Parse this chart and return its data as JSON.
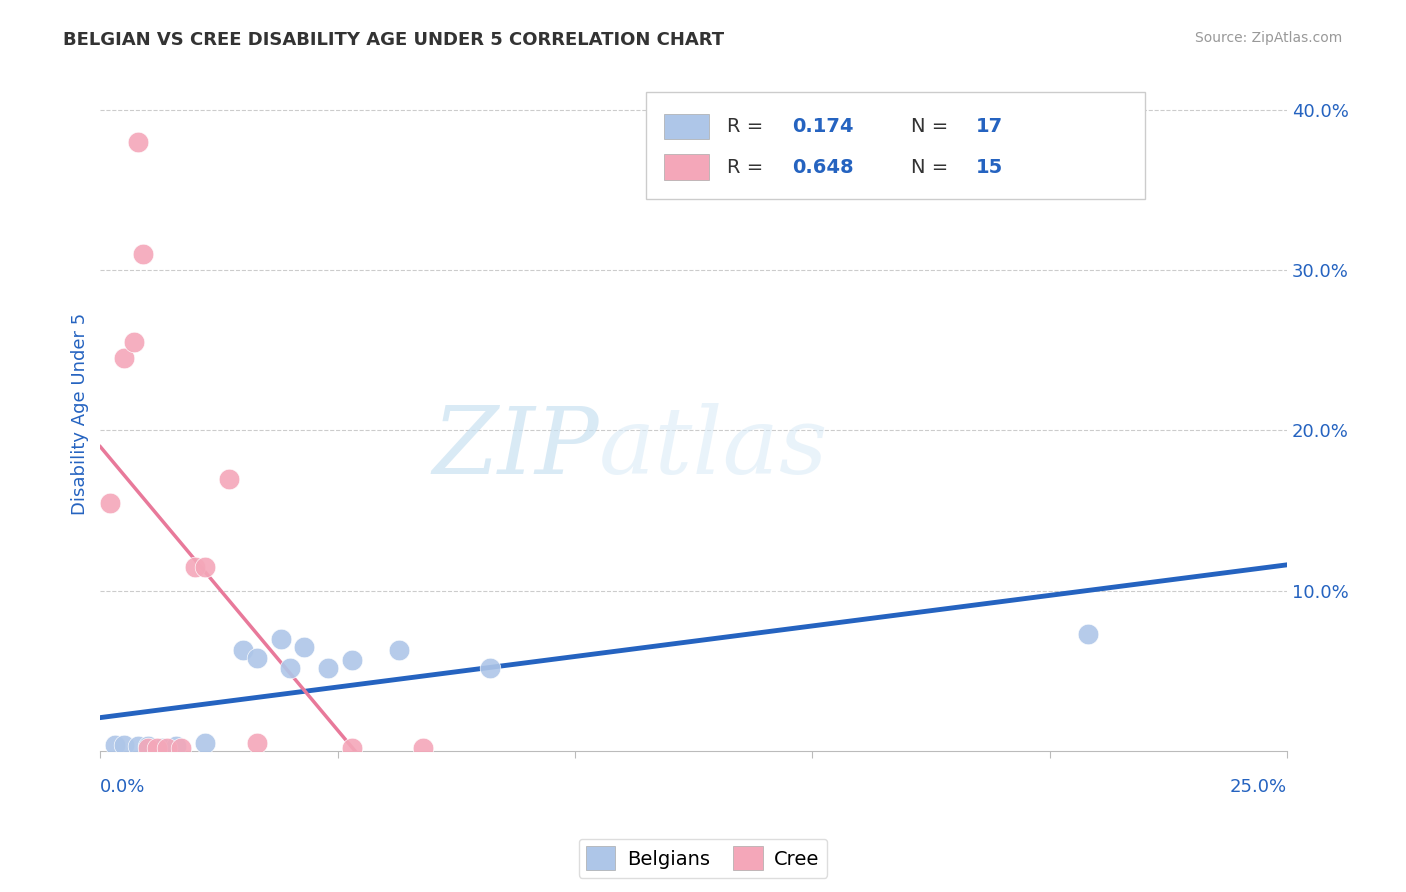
{
  "title": "BELGIAN VS CREE DISABILITY AGE UNDER 5 CORRELATION CHART",
  "source": "Source: ZipAtlas.com",
  "ylabel": "Disability Age Under 5",
  "xlim": [
    0.0,
    0.25
  ],
  "ylim": [
    0.0,
    0.42
  ],
  "ytick_vals": [
    0.0,
    0.1,
    0.2,
    0.3,
    0.4
  ],
  "ytick_labels": [
    "",
    "10.0%",
    "20.0%",
    "30.0%",
    "40.0%"
  ],
  "xtick_vals": [
    0.0,
    0.05,
    0.1,
    0.15,
    0.2,
    0.25
  ],
  "watermark_ZIP": "ZIP",
  "watermark_atlas": "atlas",
  "belgian_color": "#aec6e8",
  "cree_color": "#f4a7b9",
  "belgian_line_color": "#2563c0",
  "cree_line_color": "#e8799a",
  "cree_dash_color": "#e8aabf",
  "legend_R_belgian": "0.174",
  "legend_N_belgian": "17",
  "legend_R_cree": "0.648",
  "legend_N_cree": "15",
  "belgian_points": [
    [
      0.003,
      0.004
    ],
    [
      0.005,
      0.004
    ],
    [
      0.008,
      0.003
    ],
    [
      0.01,
      0.003
    ],
    [
      0.013,
      0.002
    ],
    [
      0.016,
      0.003
    ],
    [
      0.022,
      0.005
    ],
    [
      0.03,
      0.063
    ],
    [
      0.033,
      0.058
    ],
    [
      0.038,
      0.07
    ],
    [
      0.04,
      0.052
    ],
    [
      0.043,
      0.065
    ],
    [
      0.048,
      0.052
    ],
    [
      0.053,
      0.057
    ],
    [
      0.063,
      0.063
    ],
    [
      0.082,
      0.052
    ],
    [
      0.208,
      0.073
    ]
  ],
  "cree_points": [
    [
      0.002,
      0.155
    ],
    [
      0.005,
      0.245
    ],
    [
      0.007,
      0.255
    ],
    [
      0.008,
      0.38
    ],
    [
      0.009,
      0.31
    ],
    [
      0.01,
      0.002
    ],
    [
      0.012,
      0.002
    ],
    [
      0.014,
      0.002
    ],
    [
      0.017,
      0.002
    ],
    [
      0.02,
      0.115
    ],
    [
      0.022,
      0.115
    ],
    [
      0.027,
      0.17
    ],
    [
      0.033,
      0.005
    ],
    [
      0.053,
      0.002
    ],
    [
      0.068,
      0.002
    ]
  ],
  "title_color": "#333333",
  "source_color": "#999999",
  "axis_label_color": "#2563c0",
  "background_color": "#ffffff",
  "grid_color": "#cccccc",
  "title_fontsize": 13,
  "source_fontsize": 10,
  "label_fontsize": 13
}
